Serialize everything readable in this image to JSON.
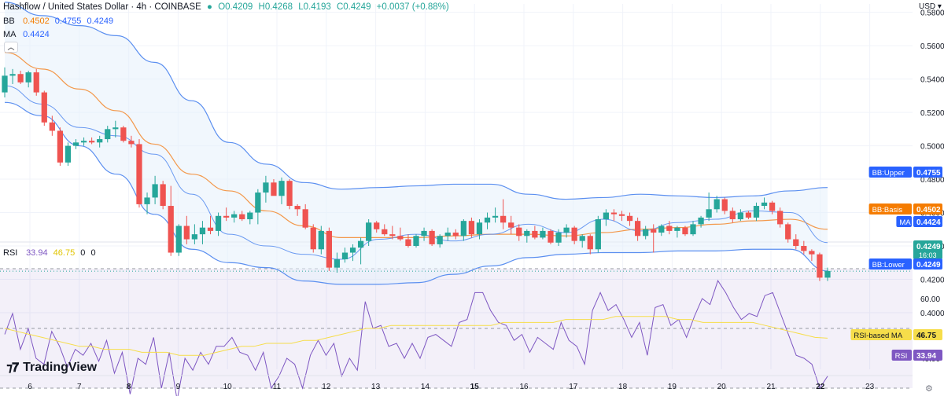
{
  "header": {
    "title": "Hashflow / United States Dollar · 4h · COINBASE",
    "open": "O0.4209",
    "high": "H0.4268",
    "low": "L0.4193",
    "close": "C0.4249",
    "change": "+0.0037 (+0.88%)"
  },
  "legend_bb": {
    "label": "BB",
    "v1": "0.4502",
    "v2": "0.4755",
    "v3": "0.4249"
  },
  "legend_ma": {
    "label": "MA",
    "v1": "0.4424"
  },
  "legend_rsi": {
    "label": "RSI",
    "v1": "33.94",
    "v2": "46.75",
    "v3": "0",
    "v4": "0"
  },
  "currency": "USD",
  "branding": "TradingView",
  "colors": {
    "up": "#26a69a",
    "down": "#ef5350",
    "bb": "#5b8ff0",
    "basis": "#f3984b",
    "rsi": "#7e57c2",
    "rsi_ma": "#f6dd4a",
    "bg_band": "#e6f0fb"
  },
  "price_labels": [
    {
      "text": "BB:Upper",
      "value": "0.4755",
      "color": "#2962ff",
      "price": 0.4755
    },
    {
      "text": "BB:Basis",
      "value": "0.4502",
      "color": "#f57c00",
      "price": 0.4502
    },
    {
      "text": "MA",
      "value": "0.4424",
      "color": "#2962ff",
      "price": 0.4424
    },
    {
      "text": "",
      "value": "0.4249",
      "color": "#26a69a",
      "price": 0.4249,
      "sub": "16:03"
    },
    {
      "text": "BB:Lower",
      "value": "0.4249",
      "color": "#2962ff",
      "price": 0.4225
    }
  ],
  "rsi_labels": [
    {
      "text": "RSI-based MA",
      "value": "46.75",
      "color": "#f6dd4a",
      "textcolor": "#131722",
      "level": 46.75
    },
    {
      "text": "RSI",
      "value": "33.94",
      "color": "#7e57c2",
      "textcolor": "#ffffff",
      "level": 33.94
    }
  ],
  "chart_data": {
    "type": "candlestick",
    "symbol": "Hashflow / United States Dollar",
    "interval": "4h",
    "price_axis": {
      "ticks": [
        0.58,
        0.56,
        0.54,
        0.52,
        0.5,
        0.48,
        0.46,
        0.44,
        0.42,
        0.4
      ],
      "range": [
        0.4,
        0.585
      ]
    },
    "x_ticks": [
      "6",
      "7",
      "8",
      "9",
      "10",
      "11",
      "12",
      "13",
      "14",
      "15",
      "16",
      "17",
      "18",
      "19",
      "20",
      "21",
      "22",
      "23"
    ],
    "candles_ohlc": [
      [
        0.532,
        0.547,
        0.529,
        0.542
      ],
      [
        0.542,
        0.546,
        0.537,
        0.543
      ],
      [
        0.543,
        0.545,
        0.537,
        0.538
      ],
      [
        0.538,
        0.545,
        0.535,
        0.544
      ],
      [
        0.544,
        0.546,
        0.53,
        0.532
      ],
      [
        0.532,
        0.533,
        0.512,
        0.514
      ],
      [
        0.514,
        0.518,
        0.506,
        0.509
      ],
      [
        0.509,
        0.511,
        0.488,
        0.49
      ],
      [
        0.49,
        0.502,
        0.488,
        0.5
      ],
      [
        0.5,
        0.504,
        0.498,
        0.502
      ],
      [
        0.502,
        0.505,
        0.5,
        0.503
      ],
      [
        0.503,
        0.505,
        0.501,
        0.502
      ],
      [
        0.502,
        0.506,
        0.499,
        0.504
      ],
      [
        0.504,
        0.512,
        0.502,
        0.51
      ],
      [
        0.51,
        0.515,
        0.505,
        0.511
      ],
      [
        0.511,
        0.512,
        0.502,
        0.503
      ],
      [
        0.503,
        0.506,
        0.499,
        0.501
      ],
      [
        0.501,
        0.504,
        0.463,
        0.465
      ],
      [
        0.465,
        0.472,
        0.459,
        0.469
      ],
      [
        0.469,
        0.482,
        0.465,
        0.477
      ],
      [
        0.477,
        0.479,
        0.462,
        0.464
      ],
      [
        0.464,
        0.476,
        0.434,
        0.436
      ],
      [
        0.436,
        0.453,
        0.434,
        0.452
      ],
      [
        0.452,
        0.458,
        0.441,
        0.444
      ],
      [
        0.444,
        0.453,
        0.441,
        0.447
      ],
      [
        0.447,
        0.455,
        0.441,
        0.451
      ],
      [
        0.451,
        0.458,
        0.447,
        0.449
      ],
      [
        0.449,
        0.46,
        0.446,
        0.458
      ],
      [
        0.458,
        0.463,
        0.455,
        0.457
      ],
      [
        0.457,
        0.461,
        0.454,
        0.459
      ],
      [
        0.459,
        0.461,
        0.455,
        0.456
      ],
      [
        0.456,
        0.461,
        0.453,
        0.46
      ],
      [
        0.46,
        0.474,
        0.453,
        0.472
      ],
      [
        0.472,
        0.482,
        0.466,
        0.478
      ],
      [
        0.478,
        0.48,
        0.471,
        0.47
      ],
      [
        0.47,
        0.481,
        0.465,
        0.479
      ],
      [
        0.479,
        0.48,
        0.462,
        0.464
      ],
      [
        0.464,
        0.465,
        0.458,
        0.462
      ],
      [
        0.462,
        0.465,
        0.45,
        0.451
      ],
      [
        0.451,
        0.453,
        0.436,
        0.438
      ],
      [
        0.438,
        0.452,
        0.435,
        0.449
      ],
      [
        0.449,
        0.451,
        0.425,
        0.427
      ],
      [
        0.427,
        0.436,
        0.424,
        0.432
      ],
      [
        0.432,
        0.439,
        0.43,
        0.436
      ],
      [
        0.436,
        0.441,
        0.431,
        0.439
      ],
      [
        0.439,
        0.445,
        0.429,
        0.443
      ],
      [
        0.443,
        0.456,
        0.44,
        0.454
      ],
      [
        0.454,
        0.455,
        0.448,
        0.45
      ],
      [
        0.45,
        0.453,
        0.446,
        0.447
      ],
      [
        0.447,
        0.452,
        0.444,
        0.446
      ],
      [
        0.446,
        0.451,
        0.443,
        0.444
      ],
      [
        0.444,
        0.447,
        0.439,
        0.44
      ],
      [
        0.44,
        0.447,
        0.439,
        0.446
      ],
      [
        0.446,
        0.451,
        0.443,
        0.449
      ],
      [
        0.449,
        0.45,
        0.44,
        0.441
      ],
      [
        0.441,
        0.447,
        0.439,
        0.446
      ],
      [
        0.446,
        0.451,
        0.443,
        0.448
      ],
      [
        0.448,
        0.45,
        0.444,
        0.446
      ],
      [
        0.446,
        0.456,
        0.443,
        0.455
      ],
      [
        0.455,
        0.457,
        0.445,
        0.447
      ],
      [
        0.447,
        0.456,
        0.444,
        0.454
      ],
      [
        0.454,
        0.46,
        0.45,
        0.457
      ],
      [
        0.457,
        0.463,
        0.454,
        0.458
      ],
      [
        0.458,
        0.468,
        0.45,
        0.454
      ],
      [
        0.454,
        0.458,
        0.447,
        0.451
      ],
      [
        0.451,
        0.453,
        0.443,
        0.446
      ],
      [
        0.446,
        0.45,
        0.442,
        0.449
      ],
      [
        0.449,
        0.452,
        0.444,
        0.445
      ],
      [
        0.445,
        0.451,
        0.444,
        0.449
      ],
      [
        0.449,
        0.45,
        0.441,
        0.442
      ],
      [
        0.442,
        0.45,
        0.44,
        0.448
      ],
      [
        0.448,
        0.453,
        0.445,
        0.451
      ],
      [
        0.451,
        0.452,
        0.441,
        0.443
      ],
      [
        0.443,
        0.447,
        0.439,
        0.446
      ],
      [
        0.446,
        0.447,
        0.435,
        0.438
      ],
      [
        0.438,
        0.458,
        0.436,
        0.456
      ],
      [
        0.456,
        0.462,
        0.452,
        0.46
      ],
      [
        0.46,
        0.462,
        0.455,
        0.459
      ],
      [
        0.459,
        0.461,
        0.455,
        0.458
      ],
      [
        0.458,
        0.46,
        0.452,
        0.455
      ],
      [
        0.455,
        0.457,
        0.443,
        0.446
      ],
      [
        0.446,
        0.452,
        0.444,
        0.45
      ],
      [
        0.45,
        0.453,
        0.436,
        0.448
      ],
      [
        0.448,
        0.453,
        0.446,
        0.452
      ],
      [
        0.452,
        0.455,
        0.447,
        0.449
      ],
      [
        0.449,
        0.452,
        0.445,
        0.451
      ],
      [
        0.451,
        0.452,
        0.446,
        0.447
      ],
      [
        0.447,
        0.455,
        0.446,
        0.453
      ],
      [
        0.453,
        0.458,
        0.451,
        0.457
      ],
      [
        0.457,
        0.472,
        0.455,
        0.462
      ],
      [
        0.462,
        0.47,
        0.46,
        0.468
      ],
      [
        0.468,
        0.469,
        0.459,
        0.461
      ],
      [
        0.461,
        0.463,
        0.454,
        0.456
      ],
      [
        0.456,
        0.462,
        0.455,
        0.46
      ],
      [
        0.46,
        0.461,
        0.456,
        0.457
      ],
      [
        0.457,
        0.466,
        0.455,
        0.464
      ],
      [
        0.464,
        0.469,
        0.462,
        0.466
      ],
      [
        0.466,
        0.467,
        0.459,
        0.461
      ],
      [
        0.461,
        0.463,
        0.451,
        0.453
      ],
      [
        0.453,
        0.454,
        0.442,
        0.444
      ],
      [
        0.444,
        0.447,
        0.438,
        0.44
      ],
      [
        0.44,
        0.443,
        0.435,
        0.437
      ],
      [
        0.437,
        0.438,
        0.431,
        0.435
      ],
      [
        0.435,
        0.436,
        0.419,
        0.421
      ],
      [
        0.421,
        0.427,
        0.419,
        0.425
      ]
    ],
    "bb_upper": [
      0.586,
      0.578,
      0.572,
      0.566,
      0.55,
      0.527,
      0.502,
      0.489,
      0.478,
      0.474,
      0.475,
      0.476,
      0.477,
      0.477,
      0.471,
      0.468,
      0.469,
      0.471,
      0.47,
      0.469,
      0.47,
      0.473,
      0.475
    ],
    "bb_basis": [
      0.556,
      0.546,
      0.534,
      0.521,
      0.501,
      0.483,
      0.473,
      0.461,
      0.452,
      0.445,
      0.445,
      0.445,
      0.446,
      0.447,
      0.447,
      0.446,
      0.448,
      0.45,
      0.451,
      0.453,
      0.455,
      0.456,
      0.45
    ],
    "bb_lower": [
      0.526,
      0.518,
      0.5,
      0.483,
      0.459,
      0.438,
      0.43,
      0.427,
      0.419,
      0.417,
      0.417,
      0.418,
      0.423,
      0.428,
      0.433,
      0.435,
      0.436,
      0.436,
      0.437,
      0.437,
      0.438,
      0.438,
      0.425
    ],
    "ma": [
      0.536,
      0.525,
      0.511,
      0.506,
      0.495,
      0.471,
      0.447,
      0.44,
      0.435,
      0.432,
      0.444,
      0.447,
      0.443,
      0.447,
      0.453,
      0.448,
      0.456,
      0.449,
      0.454,
      0.456,
      0.461,
      0.46,
      0.442
    ],
    "rsi_axis": {
      "ticks": [
        60.0,
        40.0
      ],
      "levels": [
        70,
        50,
        30
      ]
    },
    "rsi": [
      48,
      55,
      43,
      50,
      40,
      38,
      49,
      44,
      37,
      43,
      41,
      45,
      39,
      46,
      35,
      42,
      28,
      40,
      38,
      47,
      30,
      42,
      26,
      40,
      36,
      42,
      38,
      44,
      44,
      47,
      42,
      41,
      36,
      42,
      30,
      34,
      40,
      38,
      30,
      41,
      46,
      41,
      45,
      34,
      40,
      36,
      59,
      50,
      51,
      44,
      45,
      40,
      45,
      40,
      47,
      48,
      46,
      44,
      52,
      53,
      62,
      62,
      56,
      52,
      51,
      46,
      48,
      42,
      47,
      45,
      43,
      52,
      46,
      44,
      38,
      56,
      62,
      56,
      58,
      53,
      47,
      52,
      41,
      57,
      58,
      51,
      53,
      47,
      54,
      60,
      58,
      66,
      62,
      57,
      53,
      55,
      54,
      61,
      62,
      55,
      48,
      41,
      40,
      38,
      30,
      34
    ],
    "rsi_ma": [
      50,
      49,
      48,
      47,
      46,
      45,
      44,
      44,
      43,
      43,
      43,
      42,
      42,
      42,
      41,
      41,
      41,
      42,
      43,
      44,
      44,
      45,
      45,
      45,
      46,
      46,
      47,
      48,
      49,
      50,
      50,
      51,
      51,
      51,
      51,
      51,
      51,
      51,
      51,
      51,
      52,
      52,
      52,
      52,
      52,
      53,
      53,
      53,
      53,
      54,
      54,
      54,
      54,
      54,
      53,
      53,
      52,
      52,
      52,
      52,
      52,
      51,
      50,
      49,
      48,
      47,
      46.75
    ]
  }
}
